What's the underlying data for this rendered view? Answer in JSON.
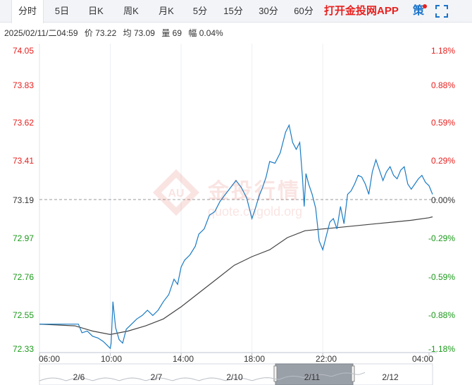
{
  "tabs": [
    {
      "label": "分时",
      "active": true
    },
    {
      "label": "5日"
    },
    {
      "label": "日K"
    },
    {
      "label": "周K"
    },
    {
      "label": "月K"
    },
    {
      "label": "5分"
    },
    {
      "label": "15分"
    },
    {
      "label": "30分"
    },
    {
      "label": "60分"
    }
  ],
  "promo": "打开金投网APP",
  "policy_label": "策",
  "fullscreen_icon": "fullscreen-icon",
  "info": {
    "datetime": "2025/02/11/二04:59",
    "price": "价 73.22",
    "avg": "均 73.09",
    "volume": "量 69",
    "change": "幅 0.04%"
  },
  "watermark": {
    "text": "金投行情",
    "url": "quote.cngold.org",
    "logo": "AU"
  },
  "colors": {
    "price_line": "#1a7bc4",
    "avg_line": "#444444",
    "up": "#e8201e",
    "down": "#1b9a1b"
  },
  "chart_data": {
    "type": "line",
    "x_ticks": [
      "06:00",
      "10:00",
      "14:00",
      "18:00",
      "22:00",
      "04:00"
    ],
    "y_ticks": [
      "74.05",
      "73.83",
      "73.62",
      "73.41",
      "73.19",
      "72.97",
      "72.76",
      "72.55",
      "72.33"
    ],
    "pct_ticks": [
      "1.18%",
      "0.88%",
      "0.59%",
      "0.29%",
      "0.00%",
      "-0.29%",
      "-0.59%",
      "-0.88%",
      "-1.18%"
    ],
    "ylim": [
      72.33,
      74.05
    ],
    "prev_close": 73.19,
    "series": [
      {
        "name": "价",
        "points": [
          [
            0,
            72.47
          ],
          [
            2.2,
            72.47
          ],
          [
            2.4,
            72.42
          ],
          [
            2.7,
            72.43
          ],
          [
            3.0,
            72.4
          ],
          [
            3.3,
            72.39
          ],
          [
            3.6,
            72.37
          ],
          [
            3.8,
            72.35
          ],
          [
            4.0,
            72.33
          ],
          [
            4.05,
            72.36
          ],
          [
            4.15,
            72.6
          ],
          [
            4.3,
            72.45
          ],
          [
            4.5,
            72.38
          ],
          [
            4.7,
            72.36
          ],
          [
            4.9,
            72.44
          ],
          [
            5.2,
            72.47
          ],
          [
            5.5,
            72.5
          ],
          [
            5.8,
            72.52
          ],
          [
            6.1,
            72.55
          ],
          [
            6.4,
            72.52
          ],
          [
            6.7,
            72.55
          ],
          [
            7.0,
            72.6
          ],
          [
            7.3,
            72.64
          ],
          [
            7.6,
            72.73
          ],
          [
            7.8,
            72.7
          ],
          [
            8.0,
            72.8
          ],
          [
            8.2,
            72.84
          ],
          [
            8.5,
            72.87
          ],
          [
            8.8,
            72.92
          ],
          [
            9.0,
            72.99
          ],
          [
            9.3,
            73.02
          ],
          [
            9.6,
            73.1
          ],
          [
            9.9,
            73.12
          ],
          [
            10.2,
            73.18
          ],
          [
            10.5,
            73.22
          ],
          [
            10.8,
            73.26
          ],
          [
            11.1,
            73.3
          ],
          [
            11.4,
            73.26
          ],
          [
            11.7,
            73.2
          ],
          [
            12.0,
            73.08
          ],
          [
            12.2,
            73.14
          ],
          [
            12.4,
            73.21
          ],
          [
            12.6,
            73.26
          ],
          [
            12.8,
            73.32
          ],
          [
            13.0,
            73.41
          ],
          [
            13.3,
            73.4
          ],
          [
            13.6,
            73.46
          ],
          [
            13.9,
            73.58
          ],
          [
            14.1,
            73.62
          ],
          [
            14.3,
            73.52
          ],
          [
            14.5,
            73.48
          ],
          [
            14.7,
            73.52
          ],
          [
            14.85,
            73.32
          ],
          [
            14.95,
            73.15
          ],
          [
            15.05,
            73.34
          ],
          [
            15.2,
            73.28
          ],
          [
            15.4,
            73.22
          ],
          [
            15.6,
            73.14
          ],
          [
            15.8,
            72.95
          ],
          [
            16.0,
            72.9
          ],
          [
            16.2,
            72.98
          ],
          [
            16.4,
            73.06
          ],
          [
            16.6,
            73.08
          ],
          [
            16.8,
            73.02
          ],
          [
            17.0,
            73.15
          ],
          [
            17.2,
            73.05
          ],
          [
            17.4,
            73.22
          ],
          [
            17.6,
            73.24
          ],
          [
            17.8,
            73.28
          ],
          [
            18.0,
            73.33
          ],
          [
            18.2,
            73.32
          ],
          [
            18.4,
            73.28
          ],
          [
            18.6,
            73.22
          ],
          [
            18.8,
            73.35
          ],
          [
            19.0,
            73.42
          ],
          [
            19.2,
            73.36
          ],
          [
            19.4,
            73.3
          ],
          [
            19.6,
            73.35
          ],
          [
            19.8,
            73.38
          ],
          [
            20.0,
            73.33
          ],
          [
            20.2,
            73.31
          ],
          [
            20.4,
            73.36
          ],
          [
            20.6,
            73.38
          ],
          [
            20.8,
            73.28
          ],
          [
            21.0,
            73.25
          ],
          [
            21.2,
            73.28
          ],
          [
            21.4,
            73.31
          ],
          [
            21.6,
            73.33
          ],
          [
            21.8,
            73.29
          ],
          [
            22.0,
            73.27
          ],
          [
            22.2,
            73.22
          ]
        ]
      },
      {
        "name": "均",
        "points": [
          [
            0,
            72.47
          ],
          [
            2,
            72.46
          ],
          [
            3,
            72.43
          ],
          [
            4,
            72.41
          ],
          [
            5,
            72.43
          ],
          [
            6,
            72.46
          ],
          [
            7,
            72.5
          ],
          [
            8,
            72.57
          ],
          [
            9,
            72.65
          ],
          [
            10,
            72.73
          ],
          [
            11,
            72.81
          ],
          [
            12,
            72.86
          ],
          [
            13,
            72.9
          ],
          [
            14,
            72.97
          ],
          [
            15,
            73.01
          ],
          [
            16,
            73.02
          ],
          [
            17,
            73.03
          ],
          [
            18,
            73.04
          ],
          [
            19,
            73.05
          ],
          [
            20,
            73.06
          ],
          [
            21,
            73.07
          ],
          [
            22,
            73.085
          ],
          [
            22.2,
            73.09
          ]
        ]
      }
    ],
    "navigator_labels": [
      "2/6",
      "2/7",
      "2/10",
      "2/11",
      "2/12"
    ]
  }
}
